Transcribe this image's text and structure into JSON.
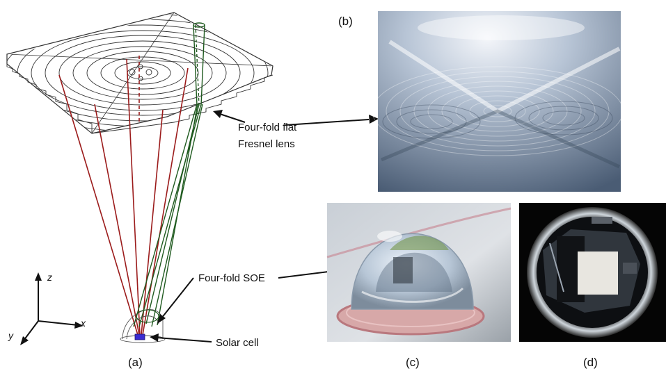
{
  "panels": {
    "a": "(a)",
    "b": "(b)",
    "c": "(c)",
    "d": "(d)"
  },
  "annotations": {
    "fresnel_line1": "Four-fold flat",
    "fresnel_line2": "Fresnel lens",
    "soe": "Four-fold SOE",
    "cell": "Solar cell"
  },
  "axes": {
    "x": "x",
    "y": "y",
    "z": "z"
  },
  "colors": {
    "red_rays": "#9b1b1b",
    "green_rays": "#1f5a1f",
    "lens_lines": "#333333",
    "cell": "#3a2bd1"
  }
}
